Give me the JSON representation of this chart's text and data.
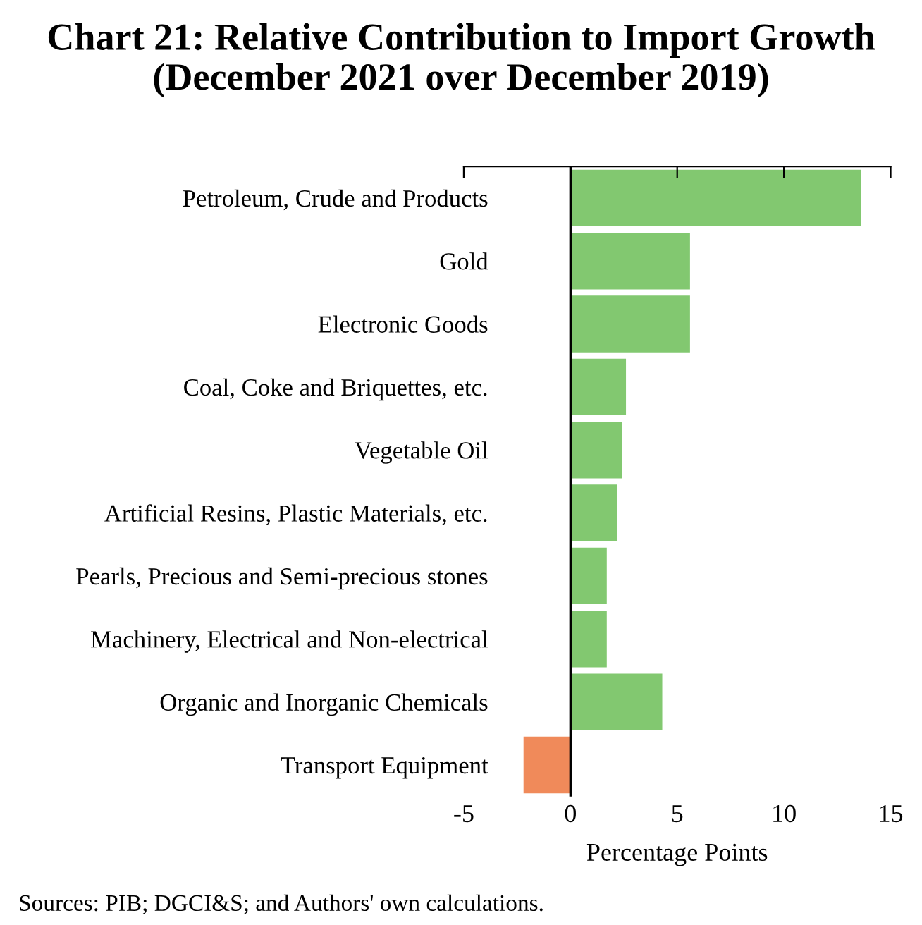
{
  "chart_data": {
    "type": "bar",
    "orientation": "horizontal",
    "title": "Chart 21: Relative Contribution to Import Growth (December 2021 over December 2019)",
    "categories": [
      "Petroleum, Crude and Products",
      "Gold",
      "Electronic Goods",
      "Coal, Coke and Briquettes, etc.",
      "Vegetable Oil",
      "Artificial Resins, Plastic Materials, etc.",
      "Pearls, Precious and Semi-precious stones",
      "Machinery, Electrical and Non-electrical",
      "Organic and Inorganic Chemicals",
      "Transport Equipment"
    ],
    "values": [
      13.6,
      5.6,
      5.6,
      2.6,
      2.4,
      2.2,
      1.7,
      1.7,
      4.3,
      -2.2
    ],
    "colors": [
      "#82c870",
      "#82c870",
      "#82c870",
      "#82c870",
      "#82c870",
      "#82c870",
      "#82c870",
      "#82c870",
      "#82c870",
      "#f08a5a"
    ],
    "xlim": [
      -5,
      15
    ],
    "xticks": [
      -5,
      0,
      5,
      10,
      15
    ],
    "xlabel": "Percentage Points",
    "ref_lines": [
      {
        "axis": "x",
        "value": 0
      }
    ],
    "annotations": [
      "Sources: PIB; DGCI&S; and Authors' own calculations."
    ]
  }
}
